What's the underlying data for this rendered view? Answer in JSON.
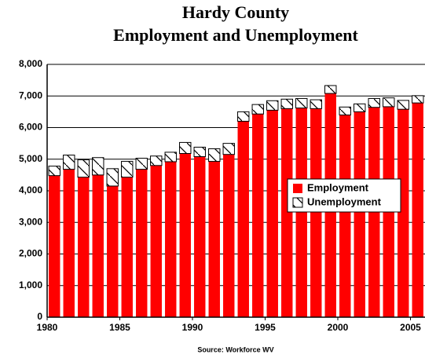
{
  "chart_data": {
    "type": "stacked_bar",
    "title": [
      "Hardy County",
      "Employment and Unemployment"
    ],
    "source": "Source: Workforce WV",
    "x": [
      1980,
      1981,
      1982,
      1983,
      1984,
      1985,
      1986,
      1987,
      1988,
      1989,
      1990,
      1991,
      1992,
      1993,
      1994,
      1995,
      1996,
      1997,
      1998,
      1999,
      2000,
      2001,
      2002,
      2003,
      2004,
      2005
    ],
    "series": [
      {
        "name": "Employment",
        "color": "#ff0000",
        "values": [
          4480,
          4680,
          4430,
          4500,
          4150,
          4430,
          4680,
          4800,
          4920,
          5180,
          5080,
          4930,
          5150,
          6200,
          6430,
          6550,
          6600,
          6620,
          6600,
          7080,
          6400,
          6500,
          6640,
          6660,
          6580,
          6780
        ]
      },
      {
        "name": "Unemployment",
        "color": "#ffffff",
        "values": [
          300,
          450,
          550,
          550,
          550,
          500,
          350,
          300,
          300,
          350,
          300,
          400,
          350,
          300,
          300,
          300,
          300,
          300,
          280,
          250,
          250,
          250,
          280,
          280,
          280,
          230
        ]
      }
    ],
    "xlim": [
      1980,
      2006
    ],
    "xticks": [
      1980,
      1985,
      1990,
      1995,
      2000,
      2005
    ],
    "ylim": [
      0,
      8000
    ],
    "yticks": [
      0,
      {
        "value": 1000,
        "label": "1,000"
      },
      {
        "value": 2000,
        "label": "2,000"
      },
      {
        "value": 3000,
        "label": "3,000"
      },
      {
        "value": 4000,
        "label": "4,000"
      },
      {
        "value": 5000,
        "label": "5,000"
      },
      {
        "value": 6000,
        "label": "6,000"
      },
      {
        "value": 7000,
        "label": "7,000"
      },
      {
        "value": 8000,
        "label": "8,000"
      }
    ],
    "grid": true,
    "legend": "right"
  }
}
